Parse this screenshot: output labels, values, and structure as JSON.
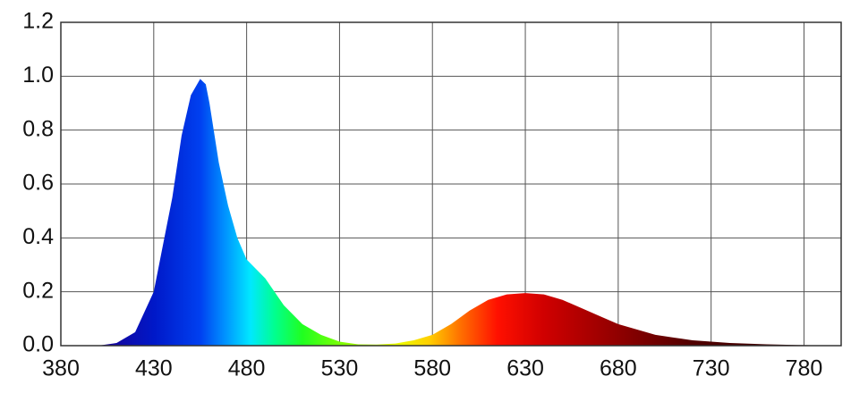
{
  "chart_data": {
    "type": "area",
    "x": [
      380,
      400,
      410,
      420,
      430,
      440,
      445,
      450,
      455,
      458,
      460,
      465,
      470,
      475,
      480,
      490,
      500,
      510,
      520,
      530,
      540,
      550,
      560,
      570,
      580,
      590,
      600,
      610,
      620,
      630,
      640,
      650,
      660,
      670,
      680,
      690,
      700,
      710,
      720,
      740,
      760,
      780,
      800
    ],
    "values": [
      0,
      0,
      0.01,
      0.05,
      0.2,
      0.55,
      0.78,
      0.93,
      0.99,
      0.97,
      0.9,
      0.68,
      0.52,
      0.4,
      0.32,
      0.25,
      0.15,
      0.08,
      0.04,
      0.015,
      0.005,
      0.004,
      0.008,
      0.02,
      0.04,
      0.08,
      0.13,
      0.17,
      0.19,
      0.195,
      0.19,
      0.17,
      0.14,
      0.11,
      0.08,
      0.06,
      0.04,
      0.03,
      0.02,
      0.01,
      0.005,
      0.002,
      0
    ],
    "xlim": [
      380,
      800
    ],
    "ylim": [
      0,
      1.2
    ],
    "xticks": [
      380,
      430,
      480,
      530,
      580,
      630,
      680,
      730,
      780
    ],
    "yticks": [
      {
        "value": 0,
        "label": "0.0"
      },
      0.2,
      0.4,
      0.6,
      0.8,
      {
        "value": 1,
        "label": "1.0"
      },
      1.2
    ],
    "grid": true
  }
}
